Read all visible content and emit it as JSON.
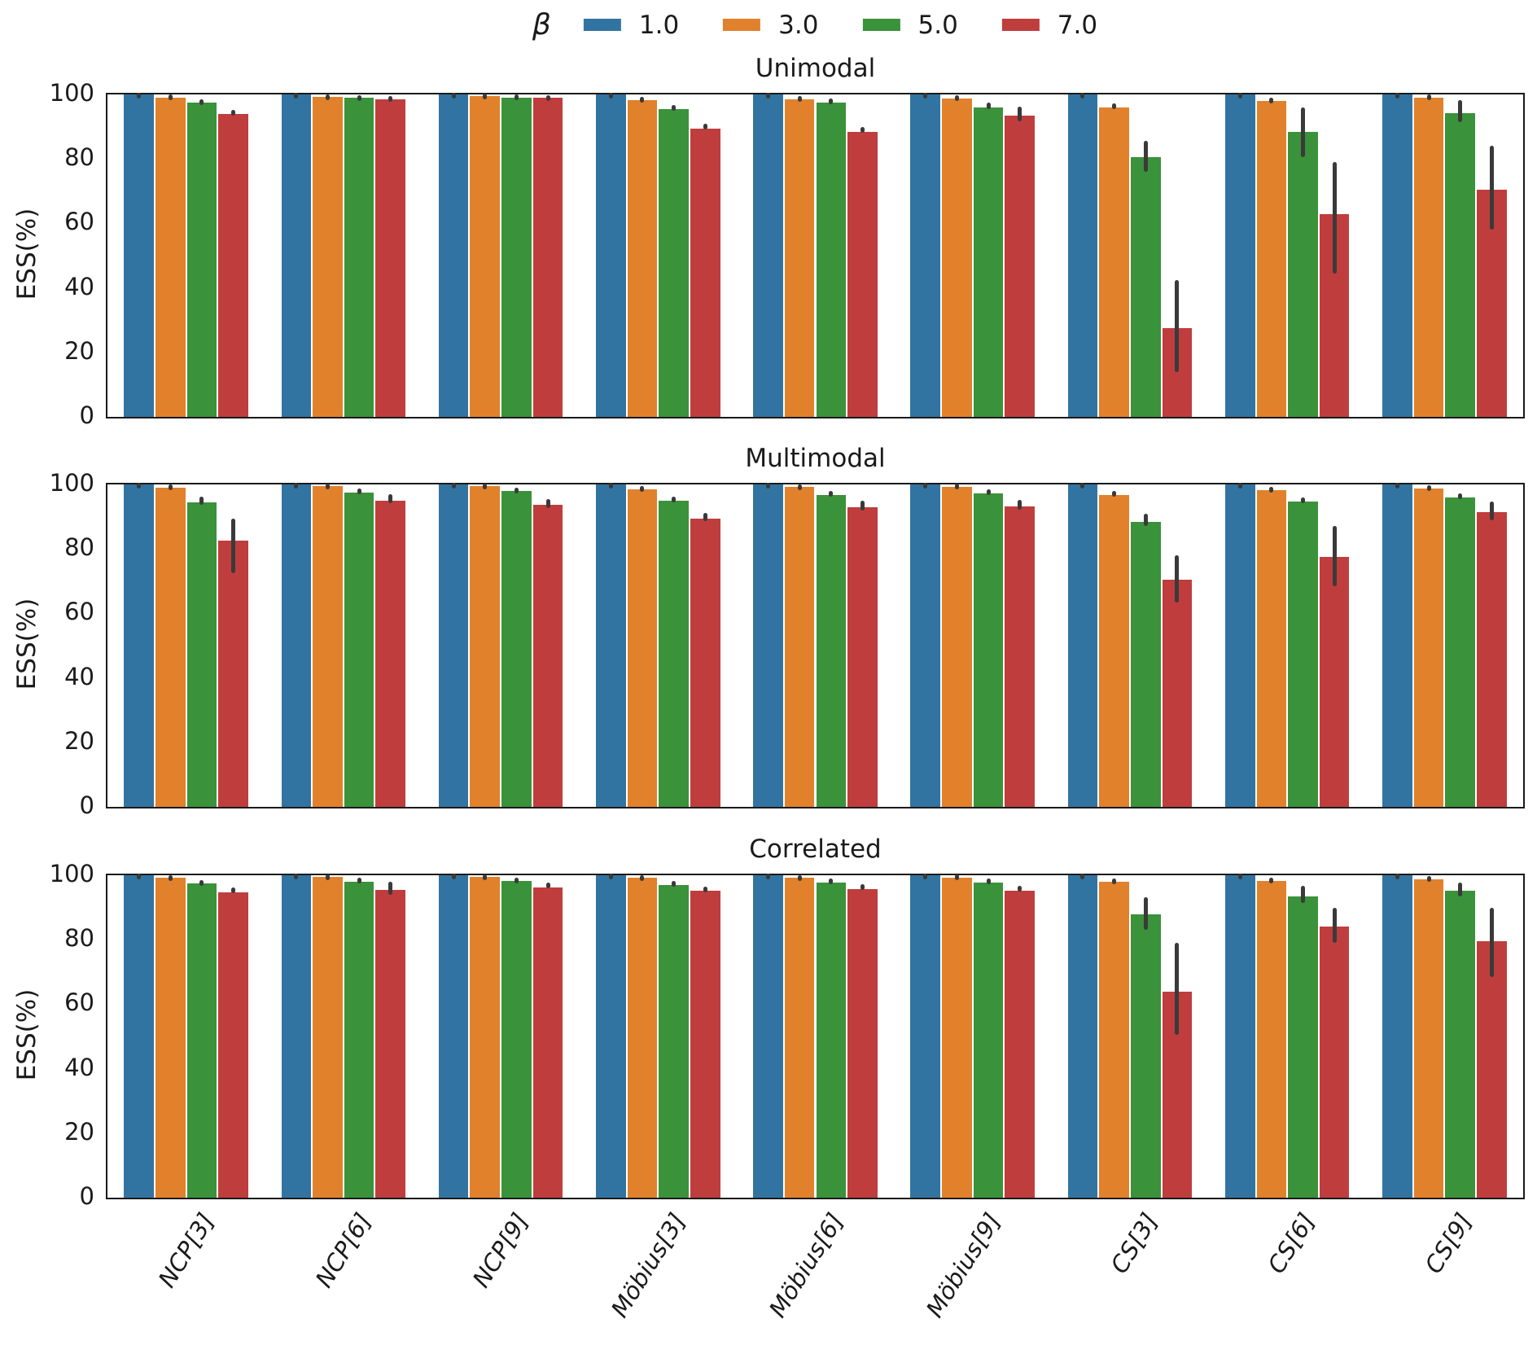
{
  "legend": {
    "title": "β",
    "entries": [
      {
        "label": "1.0",
        "color": "#3274a1"
      },
      {
        "label": "3.0",
        "color": "#e1812c"
      },
      {
        "label": "5.0",
        "color": "#3a923a"
      },
      {
        "label": "7.0",
        "color": "#c03d3e"
      }
    ]
  },
  "figure": {
    "ylabel": "ESS(%)",
    "yticks": [
      0,
      20,
      40,
      60,
      80,
      100
    ],
    "error_bar_color": "#3a3a3a",
    "categories": [
      "NCP[3]",
      "NCP[6]",
      "NCP[9]",
      "Möbius[3]",
      "Möbius[6]",
      "Möbius[9]",
      "CS[3]",
      "CS[6]",
      "CS[9]"
    ]
  },
  "chart_data": [
    {
      "type": "bar",
      "title": "Unimodal",
      "xlabel": "",
      "ylabel": "ESS(%)",
      "ylim": [
        0,
        100
      ],
      "legend_position": "top-center",
      "grid": false,
      "categories": [
        "NCP[3]",
        "NCP[6]",
        "NCP[9]",
        "Möbius[3]",
        "Möbius[6]",
        "Möbius[9]",
        "CS[3]",
        "CS[6]",
        "CS[9]"
      ],
      "series": [
        {
          "name": "1.0",
          "color": "#3274a1",
          "values": [
            100,
            100,
            100,
            100,
            100,
            100,
            100,
            100,
            100
          ],
          "err_lo": [
            99.8,
            99.8,
            99.8,
            99.8,
            99.8,
            99.8,
            99.8,
            99.8,
            99.8
          ],
          "err_hi": [
            100,
            100,
            100,
            100,
            100,
            100,
            100,
            100,
            100
          ]
        },
        {
          "name": "3.0",
          "color": "#e1812c",
          "values": [
            99.0,
            99.3,
            99.5,
            98.3,
            98.5,
            98.7,
            95.9,
            98.0,
            99.0
          ],
          "err_lo": [
            98.6,
            99.0,
            99.3,
            97.8,
            98.0,
            98.2,
            95.1,
            97.4,
            98.5
          ],
          "err_hi": [
            99.4,
            99.6,
            99.7,
            98.8,
            99.0,
            99.2,
            96.6,
            98.6,
            99.4
          ]
        },
        {
          "name": "5.0",
          "color": "#3a923a",
          "values": [
            97.4,
            99.0,
            99.1,
            95.4,
            97.6,
            96.0,
            80.5,
            88.5,
            94.3
          ],
          "err_lo": [
            96.8,
            98.6,
            98.8,
            94.7,
            97.0,
            95.0,
            75.5,
            80.0,
            90.8
          ],
          "err_hi": [
            98.0,
            99.3,
            99.4,
            96.1,
            98.2,
            97.0,
            85.0,
            95.5,
            97.8
          ]
        },
        {
          "name": "7.0",
          "color": "#c03d3e",
          "values": [
            94.0,
            98.6,
            99.0,
            89.5,
            88.5,
            93.5,
            27.5,
            63.0,
            70.5
          ],
          "err_lo": [
            93.2,
            98.2,
            98.7,
            88.6,
            87.5,
            91.2,
            13.5,
            44.0,
            57.5
          ],
          "err_hi": [
            94.8,
            99.0,
            99.3,
            90.4,
            89.5,
            95.8,
            42.0,
            78.5,
            83.5
          ]
        }
      ]
    },
    {
      "type": "bar",
      "title": "Multimodal",
      "xlabel": "",
      "ylabel": "ESS(%)",
      "ylim": [
        0,
        100
      ],
      "grid": false,
      "categories": [
        "NCP[3]",
        "NCP[6]",
        "NCP[9]",
        "Möbius[3]",
        "Möbius[6]",
        "Möbius[9]",
        "CS[3]",
        "CS[6]",
        "CS[9]"
      ],
      "series": [
        {
          "name": "1.0",
          "color": "#3274a1",
          "values": [
            100,
            100,
            100,
            100,
            100,
            100,
            100,
            100,
            100
          ],
          "err_lo": [
            99.8,
            99.8,
            99.8,
            99.8,
            99.8,
            99.8,
            99.8,
            99.8,
            99.8
          ],
          "err_hi": [
            100,
            100,
            100,
            100,
            100,
            100,
            100,
            100,
            100
          ]
        },
        {
          "name": "3.0",
          "color": "#e1812c",
          "values": [
            99.0,
            99.4,
            99.4,
            98.5,
            99.2,
            99.3,
            96.8,
            98.3,
            98.8
          ],
          "err_lo": [
            98.5,
            99.1,
            99.1,
            98.0,
            98.8,
            99.0,
            96.0,
            97.8,
            98.4
          ],
          "err_hi": [
            99.4,
            99.7,
            99.7,
            99.0,
            99.6,
            99.7,
            97.6,
            98.8,
            99.2
          ]
        },
        {
          "name": "5.0",
          "color": "#3a923a",
          "values": [
            94.5,
            97.5,
            97.9,
            95.0,
            96.8,
            97.3,
            88.5,
            94.6,
            96.0
          ],
          "err_lo": [
            93.2,
            96.8,
            97.3,
            94.2,
            96.1,
            96.6,
            86.5,
            93.8,
            95.2
          ],
          "err_hi": [
            95.8,
            98.2,
            98.5,
            95.8,
            97.5,
            98.0,
            90.3,
            95.4,
            96.8
          ]
        },
        {
          "name": "7.0",
          "color": "#c03d3e",
          "values": [
            82.5,
            95.0,
            93.6,
            89.4,
            93.0,
            93.2,
            70.5,
            77.5,
            91.5
          ],
          "err_lo": [
            72.0,
            93.6,
            92.2,
            88.2,
            91.5,
            91.7,
            63.0,
            68.0,
            88.5
          ],
          "err_hi": [
            89.0,
            96.4,
            95.0,
            90.6,
            94.5,
            94.7,
            77.5,
            86.5,
            94.2
          ]
        }
      ]
    },
    {
      "type": "bar",
      "title": "Correlated",
      "xlabel": "",
      "ylabel": "ESS(%)",
      "ylim": [
        0,
        100
      ],
      "grid": false,
      "categories": [
        "NCP[3]",
        "NCP[6]",
        "NCP[9]",
        "Möbius[3]",
        "Möbius[6]",
        "Möbius[9]",
        "CS[3]",
        "CS[6]",
        "CS[9]"
      ],
      "series": [
        {
          "name": "1.0",
          "color": "#3274a1",
          "values": [
            100,
            100,
            100,
            100,
            100,
            100,
            100,
            100,
            100
          ],
          "err_lo": [
            99.8,
            99.8,
            99.8,
            99.8,
            99.8,
            99.8,
            99.8,
            99.8,
            99.8
          ],
          "err_hi": [
            100,
            100,
            100,
            100,
            100,
            100,
            100,
            100,
            100
          ]
        },
        {
          "name": "3.0",
          "color": "#e1812c",
          "values": [
            99.2,
            99.4,
            99.4,
            99.2,
            99.2,
            99.3,
            98.0,
            98.2,
            98.7
          ],
          "err_lo": [
            98.8,
            99.1,
            99.2,
            98.8,
            98.8,
            99.0,
            97.4,
            97.7,
            98.2
          ],
          "err_hi": [
            99.6,
            99.7,
            99.7,
            99.6,
            99.5,
            99.7,
            98.6,
            98.8,
            99.2
          ]
        },
        {
          "name": "5.0",
          "color": "#3a923a",
          "values": [
            97.5,
            98.0,
            98.2,
            97.0,
            97.8,
            97.8,
            87.8,
            93.5,
            95.2
          ],
          "err_lo": [
            96.9,
            97.3,
            97.7,
            96.3,
            97.2,
            97.1,
            82.5,
            90.8,
            93.0
          ],
          "err_hi": [
            98.1,
            98.7,
            98.8,
            97.7,
            98.4,
            98.5,
            92.8,
            96.2,
            97.2
          ]
        },
        {
          "name": "7.0",
          "color": "#c03d3e",
          "values": [
            94.8,
            95.5,
            96.3,
            95.2,
            95.8,
            95.3,
            64.0,
            84.0,
            79.5
          ],
          "err_lo": [
            93.9,
            93.5,
            95.4,
            94.4,
            94.9,
            94.4,
            50.0,
            78.5,
            68.0
          ],
          "err_hi": [
            95.7,
            97.4,
            97.2,
            96.0,
            96.7,
            96.2,
            78.5,
            89.3,
            89.5
          ]
        }
      ]
    }
  ]
}
